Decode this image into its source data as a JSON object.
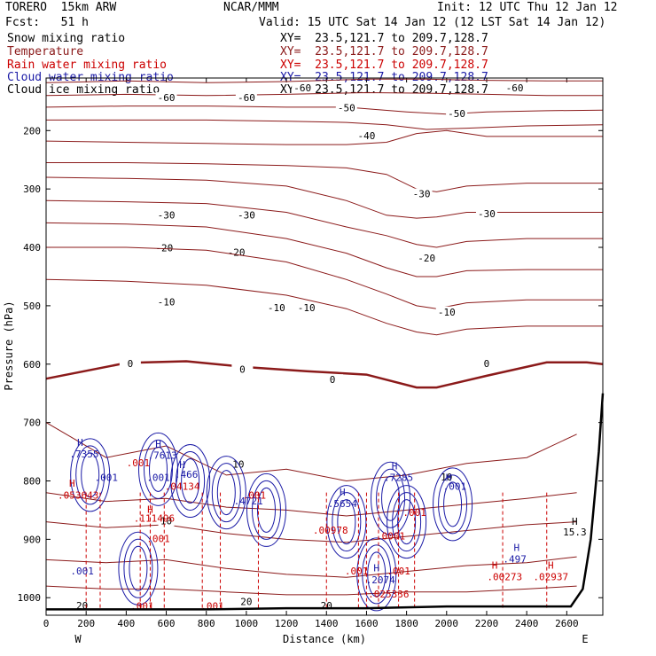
{
  "header": {
    "model": "TORERO  15km ARW",
    "center": "NCAR/MMM",
    "init": "Init: 12 UTC Thu 12 Jan 12",
    "fcst": "Fcst:   51 h",
    "valid": "Valid: 15 UTC Sat 14 Jan 12 (12 LST Sat 14 Jan 12)"
  },
  "legend": [
    {
      "name": "Snow mixing ratio",
      "xy": "XY=  23.5,121.7 to 209.7,128.7",
      "color": "#000000"
    },
    {
      "name": "Temperature",
      "xy": "XY=  23.5,121.7 to 209.7,128.7",
      "color": "#8b1a1a"
    },
    {
      "name": "Rain water mixing ratio",
      "xy": "XY=  23.5,121.7 to 209.7,128.7",
      "color": "#cc0000"
    },
    {
      "name": "Cloud water mixing ratio",
      "xy": "XY=  23.5,121.7 to 209.7,128.7",
      "color": "#1a1aa6"
    },
    {
      "name": "Cloud ice mixing ratio",
      "xy": "XY=  23.5,121.7 to 209.7,128.7",
      "color": "#000000"
    }
  ],
  "chart_data": {
    "type": "line",
    "title": "",
    "xlabel": "Distance (km)",
    "ylabel": "Pressure (hPa)",
    "xlim": [
      0,
      2780
    ],
    "ylim": [
      1030,
      110
    ],
    "xticks": [
      0,
      200,
      400,
      600,
      800,
      1000,
      1200,
      1400,
      1600,
      1800,
      2000,
      2200,
      2400,
      2600
    ],
    "yticks": [
      200,
      300,
      400,
      500,
      600,
      700,
      800,
      900,
      1000
    ],
    "left_end_label": "W",
    "right_end_label": "E",
    "temperature_isotherms": [
      {
        "value": -60,
        "label_text": "-60",
        "x": [
          0,
          400,
          800,
          1200,
          1600,
          1900,
          2200,
          2500,
          2780
        ],
        "y": [
          118,
          115,
          118,
          116,
          112,
          112,
          114,
          115,
          115
        ],
        "labels_at": [
          [
            1280,
            128
          ],
          [
            2340,
            128
          ]
        ]
      },
      {
        "value": -60,
        "label_text": "-60",
        "x": [
          0,
          400,
          800,
          1200,
          1600,
          1900,
          2200,
          2500,
          2780
        ],
        "y": [
          140,
          138,
          140,
          138,
          135,
          136,
          138,
          140,
          140
        ],
        "labels_at": [
          [
            600,
            145
          ],
          [
            1000,
            145
          ]
        ]
      },
      {
        "value": -50,
        "label_text": "-50",
        "x": [
          0,
          400,
          800,
          1200,
          1500,
          1800,
          2000,
          2200,
          2500,
          2780
        ],
        "y": [
          160,
          158,
          158,
          160,
          160,
          168,
          172,
          168,
          166,
          165
        ],
        "labels_at": [
          [
            1500,
            162
          ],
          [
            2050,
            172
          ]
        ]
      },
      {
        "value": -50,
        "label_text": "-50",
        "x": [
          0,
          400,
          800,
          1200,
          1500,
          1700,
          1900,
          2100,
          2400,
          2780
        ],
        "y": [
          182,
          182,
          182,
          184,
          186,
          190,
          198,
          196,
          192,
          190
        ],
        "labels_at": []
      },
      {
        "value": -40,
        "label_text": "-40",
        "x": [
          0,
          400,
          800,
          1200,
          1500,
          1700,
          1850,
          2000,
          2200,
          2500,
          2780
        ],
        "y": [
          218,
          220,
          222,
          224,
          224,
          220,
          205,
          200,
          210,
          210,
          210
        ],
        "labels_at": [
          [
            1600,
            210
          ]
        ]
      },
      {
        "value": -30,
        "label_text": "-30",
        "x": [
          0,
          400,
          800,
          1200,
          1500,
          1700,
          1850,
          1950,
          2100,
          2400,
          2780
        ],
        "y": [
          255,
          255,
          257,
          260,
          264,
          275,
          300,
          305,
          295,
          290,
          290
        ],
        "labels_at": [
          [
            1875,
            310
          ]
        ]
      },
      {
        "value": -30,
        "label_text": "-30",
        "x": [
          0,
          400,
          800,
          1200,
          1500,
          1700,
          1850,
          1950,
          2100,
          2400,
          2780
        ],
        "y": [
          280,
          282,
          285,
          295,
          320,
          345,
          350,
          348,
          340,
          340,
          340
        ],
        "labels_at": [
          [
            600,
            346
          ],
          [
            1000,
            346
          ],
          [
            2200,
            344
          ]
        ]
      },
      {
        "value": -20,
        "label_text": "-20",
        "x": [
          0,
          400,
          800,
          1200,
          1500,
          1700,
          1850,
          1950,
          2100,
          2400,
          2780
        ],
        "y": [
          320,
          322,
          325,
          340,
          365,
          380,
          395,
          400,
          390,
          385,
          385
        ],
        "labels_at": [
          [
            590,
            402
          ],
          [
            950,
            410
          ],
          [
            1900,
            420
          ]
        ]
      },
      {
        "value": -20,
        "label_text": "-20",
        "x": [
          0,
          400,
          800,
          1200,
          1500,
          1700,
          1850,
          1950,
          2100,
          2400,
          2780
        ],
        "y": [
          358,
          360,
          365,
          385,
          410,
          435,
          450,
          450,
          440,
          438,
          438
        ],
        "labels_at": []
      },
      {
        "value": -10,
        "label_text": "-10",
        "x": [
          0,
          400,
          800,
          1200,
          1500,
          1700,
          1850,
          1950,
          2100,
          2400,
          2780
        ],
        "y": [
          400,
          400,
          405,
          425,
          455,
          480,
          500,
          505,
          495,
          490,
          490
        ],
        "labels_at": [
          [
            600,
            495
          ],
          [
            1150,
            505
          ],
          [
            1300,
            505
          ],
          [
            2000,
            512
          ]
        ]
      },
      {
        "value": -10,
        "label_text": "-10",
        "x": [
          0,
          400,
          800,
          1200,
          1500,
          1700,
          1850,
          1950,
          2100,
          2400,
          2780
        ],
        "y": [
          455,
          458,
          465,
          482,
          505,
          530,
          545,
          550,
          540,
          535,
          535
        ],
        "labels_at": []
      },
      {
        "value": 0,
        "label_text": "0",
        "x": [
          0,
          400,
          700,
          1000,
          1300,
          1600,
          1850,
          1950,
          2200,
          2500,
          2700,
          2780
        ],
        "y": [
          625,
          598,
          595,
          605,
          612,
          618,
          640,
          640,
          620,
          597,
          597,
          600
        ],
        "labels_at": [
          [
            420,
            600
          ],
          [
            980,
            610
          ],
          [
            1430,
            628
          ],
          [
            2200,
            600
          ]
        ],
        "bold": true
      }
    ],
    "lower_contours_labels": [
      {
        "text": "10",
        "x": 960,
        "y": 773
      },
      {
        "text": "10",
        "x": 2000,
        "y": 795
      },
      {
        "text": "10",
        "x": 600,
        "y": 870
      },
      {
        "text": "20",
        "x": 1000,
        "y": 1008
      },
      {
        "text": "20",
        "x": 180,
        "y": 1015
      },
      {
        "text": "20",
        "x": 1400,
        "y": 1015
      }
    ],
    "cloud_water_maxima": [
      {
        "text": "H",
        "x": 170,
        "y": 740
      },
      {
        "text": ".7355",
        "x": 190,
        "y": 760
      },
      {
        "text": "H",
        "x": 560,
        "y": 742
      },
      {
        "text": ".7613",
        "x": 580,
        "y": 762
      },
      {
        "text": "H",
        "x": 680,
        "y": 778
      },
      {
        "text": ".466",
        "x": 700,
        "y": 795
      },
      {
        "text": ".4721",
        "x": 1010,
        "y": 840
      },
      {
        "text": "H",
        "x": 1480,
        "y": 825
      },
      {
        "text": ".5654",
        "x": 1480,
        "y": 845
      },
      {
        "text": "H",
        "x": 1740,
        "y": 780
      },
      {
        "text": ".7285",
        "x": 1760,
        "y": 800
      },
      {
        "text": "H",
        "x": 2010,
        "y": 800
      },
      {
        "text": ".001",
        "x": 2040,
        "y": 815
      },
      {
        "text": ".001",
        "x": 300,
        "y": 800
      },
      {
        "text": ".001",
        "x": 560,
        "y": 800
      },
      {
        "text": ".001",
        "x": 180,
        "y": 960
      },
      {
        "text": "H",
        "x": 1650,
        "y": 955
      },
      {
        "text": ".2074",
        "x": 1670,
        "y": 975
      },
      {
        "text": "H",
        "x": 2350,
        "y": 920
      },
      {
        "text": ".497",
        "x": 2340,
        "y": 940
      }
    ],
    "rain_water_maxima": [
      {
        "text": "H",
        "x": 130,
        "y": 810
      },
      {
        "text": ".053643",
        "x": 160,
        "y": 830
      },
      {
        "text": "H",
        "x": 520,
        "y": 855
      },
      {
        "text": ".111496",
        "x": 540,
        "y": 870
      },
      {
        "text": ".001",
        "x": 460,
        "y": 775
      },
      {
        "text": ".04134",
        "x": 680,
        "y": 815
      },
      {
        "text": ".001",
        "x": 1040,
        "y": 830
      },
      {
        "text": ".001",
        "x": 560,
        "y": 905
      },
      {
        "text": ".00978",
        "x": 1420,
        "y": 890
      },
      {
        "text": ".001",
        "x": 1550,
        "y": 960
      },
      {
        "text": ".0001",
        "x": 1720,
        "y": 900
      },
      {
        "text": ".001",
        "x": 1840,
        "y": 860
      },
      {
        "text": ".001",
        "x": 1760,
        "y": 960
      },
      {
        "text": ".025336",
        "x": 1710,
        "y": 1000
      },
      {
        "text": ".00273",
        "x": 2290,
        "y": 970
      },
      {
        "text": "H",
        "x": 2240,
        "y": 950
      },
      {
        "text": "H",
        "x": 2520,
        "y": 950
      },
      {
        "text": ".02937",
        "x": 2520,
        "y": 970
      },
      {
        "text": ".001",
        "x": 480,
        "y": 1020
      },
      {
        "text": ".001",
        "x": 830,
        "y": 1020
      }
    ],
    "snow_maxima": [
      {
        "text": "H",
        "x": 2640,
        "y": 875
      },
      {
        "text": "15.3",
        "x": 2640,
        "y": 893
      }
    ],
    "terrain": {
      "x": [
        0,
        400,
        800,
        1200,
        1600,
        2000,
        2400,
        2620,
        2680,
        2720,
        2760,
        2780
      ],
      "y": [
        1020,
        1020,
        1020,
        1018,
        1018,
        1015,
        1015,
        1015,
        985,
        900,
        750,
        650
      ]
    }
  }
}
